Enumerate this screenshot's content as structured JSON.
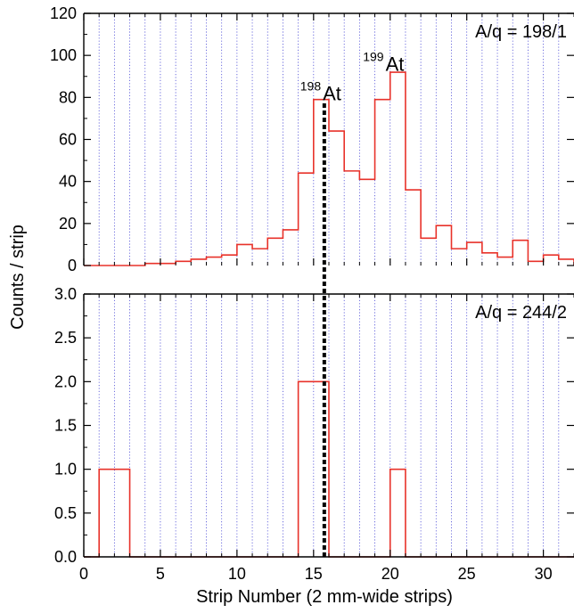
{
  "chart_data": {
    "type": "histogram",
    "xlabel": "Strip Number (2 mm-wide strips)",
    "ylabel": "Counts / strip",
    "xlim": [
      0,
      32
    ],
    "x_ticks": [
      "0",
      "5",
      "10",
      "15",
      "20",
      "25",
      "30"
    ],
    "grid": "vertical dotted lines at every integer strip",
    "colors": {
      "histogram": "#e8322a",
      "grid": "#4b4bd6",
      "marker": "#000000"
    },
    "marker_line": {
      "x": 15.7,
      "style": "dashed black, spans both panels"
    },
    "panels": [
      {
        "name": "top",
        "label": "A/q = 198/1",
        "ylim": [
          0,
          120
        ],
        "y_ticks": [
          "0",
          "20",
          "40",
          "60",
          "80",
          "100",
          "120"
        ],
        "bins_start": 0,
        "bin_width": 1,
        "values": [
          0,
          0,
          0,
          0,
          1,
          1,
          2,
          3,
          4,
          5,
          10,
          8,
          13,
          17,
          44,
          79,
          64,
          45,
          41,
          79,
          92,
          36,
          13,
          19,
          8,
          11,
          6,
          4,
          12,
          2,
          5,
          3
        ],
        "annotations": [
          {
            "mass": "198",
            "element": "At",
            "x": 15.6,
            "y": 80
          },
          {
            "mass": "199",
            "element": "At",
            "x": 19.7,
            "y": 94
          }
        ]
      },
      {
        "name": "bottom",
        "label": "A/q = 244/2",
        "ylim": [
          0,
          3.0
        ],
        "y_ticks": [
          "0.0",
          "0.5",
          "1.0",
          "1.5",
          "2.0",
          "2.5",
          "3.0"
        ],
        "bins_start": 0,
        "bin_width": 1,
        "values": [
          0,
          1,
          1,
          0,
          0,
          0,
          0,
          0,
          0,
          0,
          0,
          0,
          0,
          0,
          2,
          2,
          0,
          0,
          0,
          0,
          1,
          0,
          0,
          0,
          0,
          0,
          0,
          0,
          0,
          0,
          0,
          0
        ]
      }
    ]
  }
}
